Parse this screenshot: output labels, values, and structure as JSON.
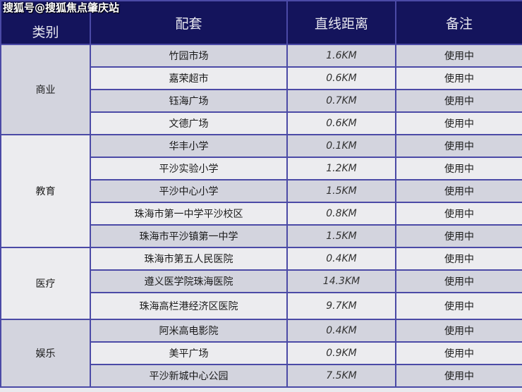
{
  "watermark": "搜狐号@搜狐焦点肇庆站",
  "headers": [
    "类别",
    "配套",
    "直线距离",
    "备注"
  ],
  "groups": [
    {
      "category": "商业",
      "rows": [
        {
          "name": "竹园市场",
          "distance": "1.6KM",
          "note": "使用中"
        },
        {
          "name": "嘉荣超市",
          "distance": "0.6KM",
          "note": "使用中"
        },
        {
          "name": "钰海广场",
          "distance": "0.7KM",
          "note": "使用中"
        },
        {
          "name": "文德广场",
          "distance": "0.6KM",
          "note": "使用中"
        }
      ]
    },
    {
      "category": "教育",
      "rows": [
        {
          "name": "华丰小学",
          "distance": "0.1KM",
          "note": "使用中"
        },
        {
          "name": "平沙实验小学",
          "distance": "1.2KM",
          "note": "使用中"
        },
        {
          "name": "平沙中心小学",
          "distance": "1.5KM",
          "note": "使用中"
        },
        {
          "name": "珠海市第一中学平沙校区",
          "distance": "0.8KM",
          "note": "使用中"
        },
        {
          "name": "珠海市平沙镇第一中学",
          "distance": "1.5KM",
          "note": "使用中"
        }
      ]
    },
    {
      "category": "医疗",
      "rows": [
        {
          "name": "珠海市第五人民医院",
          "distance": "0.4KM",
          "note": "使用中"
        },
        {
          "name": "遵义医学院珠海医院",
          "distance": "14.3KM",
          "note": "使用中"
        },
        {
          "name": "珠海高栏港经济区医院",
          "distance": "9.7KM",
          "note": "使用中"
        }
      ]
    },
    {
      "category": "娱乐",
      "rows": [
        {
          "name": "阿米高电影院",
          "distance": "0.4KM",
          "note": "使用中"
        },
        {
          "name": "美平广场",
          "distance": "0.9KM",
          "note": "使用中"
        },
        {
          "name": "平沙新城中心公园",
          "distance": "7.5KM",
          "note": "使用中"
        }
      ]
    }
  ]
}
